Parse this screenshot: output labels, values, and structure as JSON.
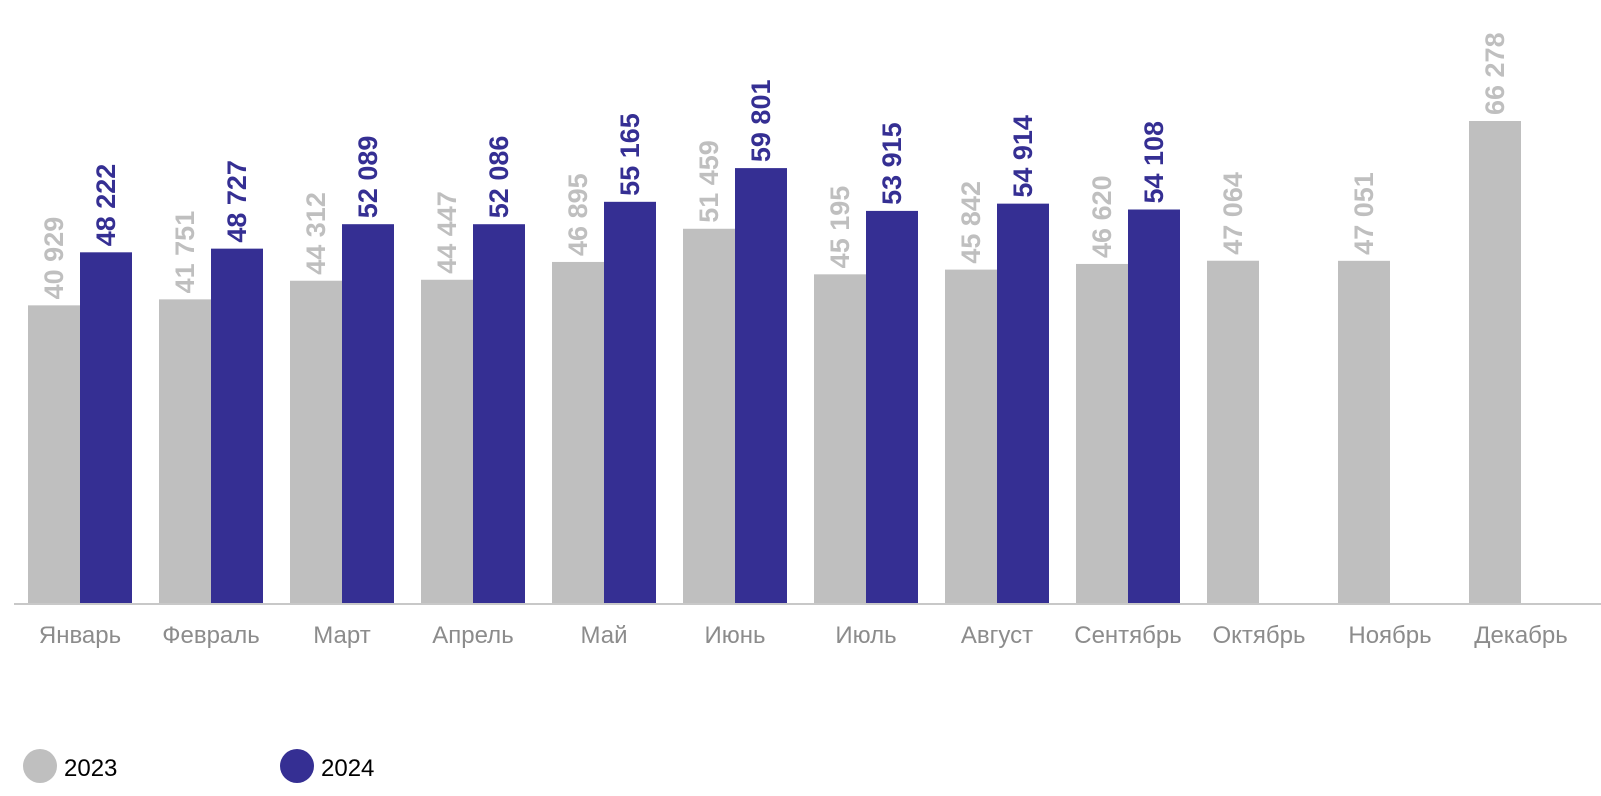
{
  "chart_data": {
    "type": "bar",
    "categories": [
      "Январь",
      "Февраль",
      "Март",
      "Апрель",
      "Май",
      "Июнь",
      "Июль",
      "Август",
      "Сентябрь",
      "Октябрь",
      "Ноябрь",
      "Декабрь"
    ],
    "series": [
      {
        "name": "2023",
        "color": "#bfbfbf",
        "values": [
          40929,
          41751,
          44312,
          44447,
          46895,
          51459,
          45195,
          45842,
          46620,
          47064,
          47051,
          66278
        ],
        "labels": [
          "40 929",
          "41 751",
          "44 312",
          "44 447",
          "46 895",
          "51 459",
          "45 195",
          "45 842",
          "46 620",
          "47 064",
          "47 051",
          "66 278"
        ]
      },
      {
        "name": "2024",
        "color": "#352f93",
        "values": [
          48222,
          48727,
          52089,
          52086,
          55165,
          59801,
          53915,
          54914,
          54108,
          null,
          null,
          null
        ],
        "labels": [
          "48 222",
          "48 727",
          "52 089",
          "52 086",
          "55 165",
          "59 801",
          "53 915",
          "54 914",
          "54 108",
          null,
          null,
          null
        ]
      }
    ],
    "ylim": [
      0,
      66278
    ],
    "grid": false,
    "legend_position": "bottom-left",
    "data_labels": "rotated-vertical"
  }
}
